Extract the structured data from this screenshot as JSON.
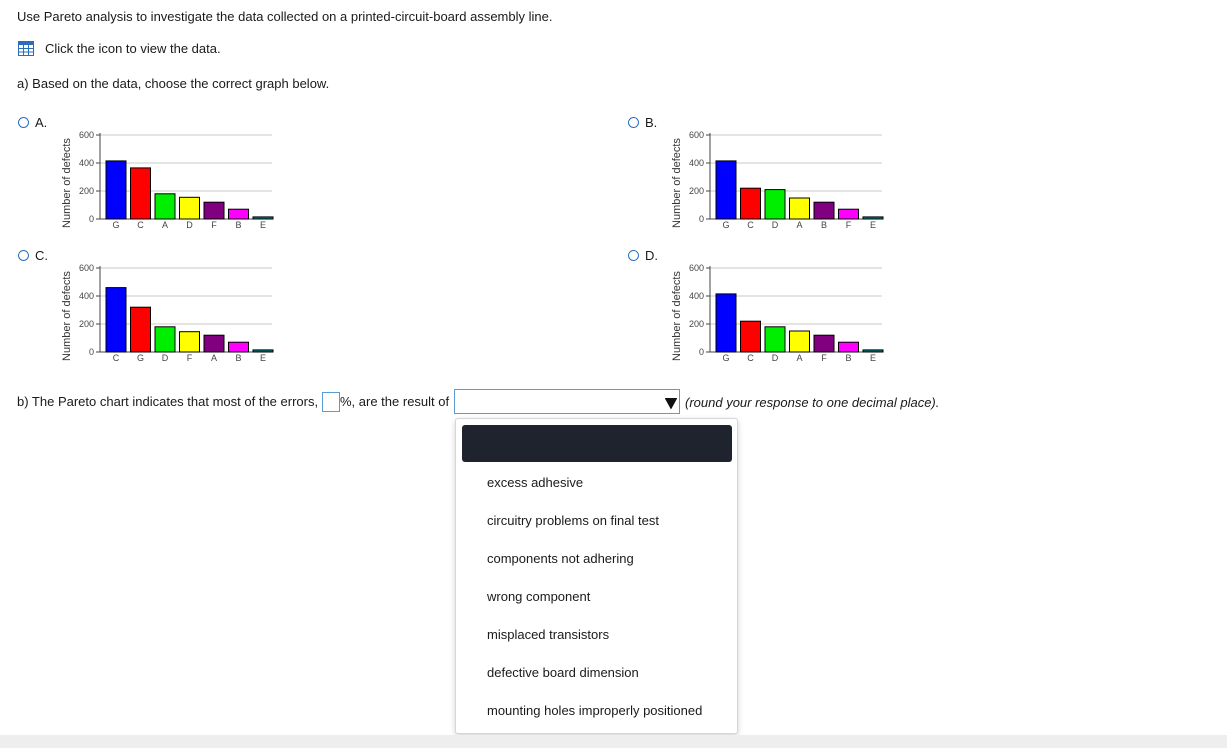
{
  "question": {
    "intro": "Use Pareto analysis to investigate the data collected on a printed-circuit-board assembly line.",
    "data_link": "Click the icon to view the data.",
    "part_a": "a) Based on the data, choose the correct graph below.",
    "part_b_prefix": "b) The Pareto chart indicates that most of the errors,",
    "part_b_mid": "%, are the result of",
    "part_b_suffix": "(round your response to one decimal place).",
    "percent_value": "",
    "select_value": ""
  },
  "icons": {
    "data_table": "table-grid-icon",
    "dropdown_arrow": "triangle-down-icon"
  },
  "colors": {
    "accent": "#2a6ebb",
    "input_border": "#5b9bd5",
    "highlight": "#1f232d",
    "bar_colors": [
      "#0000ff",
      "#ff0000",
      "#00ee00",
      "#ffff00",
      "#800080",
      "#ff00ff",
      "#008080"
    ]
  },
  "options": [
    {
      "letter": "A."
    },
    {
      "letter": "B."
    },
    {
      "letter": "C."
    },
    {
      "letter": "D."
    }
  ],
  "chart_data": [
    {
      "type": "bar",
      "option": "A",
      "ylabel": "Number of defects",
      "ylim": [
        0,
        600
      ],
      "yticks": [
        "0",
        "200",
        "400",
        "600"
      ],
      "categories": [
        "G",
        "C",
        "A",
        "D",
        "F",
        "B",
        "E"
      ],
      "values": [
        415,
        365,
        180,
        155,
        120,
        70,
        15
      ],
      "grid": true
    },
    {
      "type": "bar",
      "option": "B",
      "ylabel": "Number of defects",
      "ylim": [
        0,
        600
      ],
      "yticks": [
        "0",
        "200",
        "400",
        "600"
      ],
      "categories": [
        "G",
        "C",
        "D",
        "A",
        "B",
        "F",
        "E"
      ],
      "values": [
        415,
        220,
        210,
        150,
        120,
        70,
        15
      ],
      "grid": true
    },
    {
      "type": "bar",
      "option": "C",
      "ylabel": "Number of defects",
      "ylim": [
        0,
        600
      ],
      "yticks": [
        "0",
        "200",
        "400",
        "600"
      ],
      "categories": [
        "C",
        "G",
        "D",
        "F",
        "A",
        "B",
        "E"
      ],
      "values": [
        460,
        320,
        180,
        145,
        120,
        70,
        15
      ],
      "grid": true
    },
    {
      "type": "bar",
      "option": "D",
      "ylabel": "Number of defects",
      "ylim": [
        0,
        600
      ],
      "yticks": [
        "0",
        "200",
        "400",
        "600"
      ],
      "categories": [
        "G",
        "C",
        "D",
        "A",
        "F",
        "B",
        "E"
      ],
      "values": [
        415,
        220,
        180,
        150,
        120,
        70,
        15
      ],
      "grid": true
    }
  ],
  "dropdown": {
    "items": [
      "excess adhesive",
      "circuitry problems on final test",
      "components not adhering",
      "wrong component",
      "misplaced transistors",
      "defective board dimension",
      "mounting holes improperly positioned"
    ]
  }
}
